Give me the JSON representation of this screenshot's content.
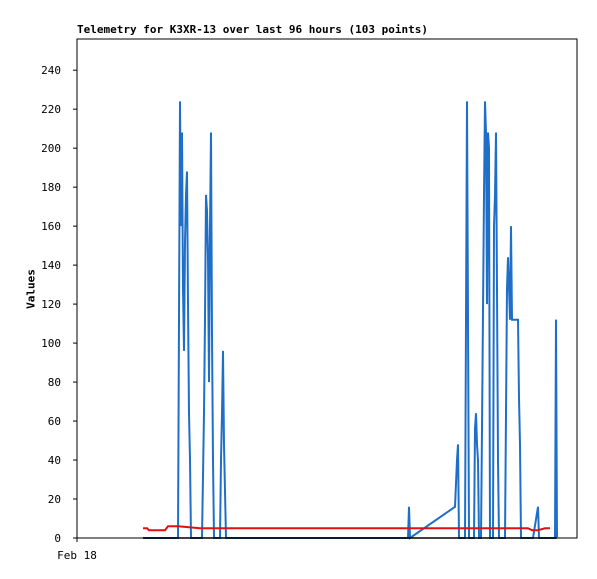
{
  "chart_data": {
    "type": "line",
    "title": "Telemetry for K3XR-13 over last 96 hours (103 points)",
    "xlabel": "",
    "ylabel": "Values",
    "x_tick_labels": [
      "Feb 18"
    ],
    "ylim": [
      0,
      256
    ],
    "y_ticks": [
      0,
      20,
      40,
      60,
      80,
      100,
      120,
      140,
      160,
      180,
      200,
      220,
      240
    ],
    "grid": false,
    "colors": {
      "series_blue": "#1f6fc8",
      "series_red": "#e01010",
      "series_black": "#000000"
    },
    "series": [
      {
        "color": "#1f6fc8",
        "points": [
          [
            143,
            0
          ],
          [
            178,
            0
          ],
          [
            179,
            112
          ],
          [
            180,
            224
          ],
          [
            181,
            160
          ],
          [
            182,
            208
          ],
          [
            183,
            128
          ],
          [
            184,
            96
          ],
          [
            185,
            152
          ],
          [
            186,
            176
          ],
          [
            187,
            188
          ],
          [
            188,
            120
          ],
          [
            189,
            64
          ],
          [
            190,
            40
          ],
          [
            191,
            0
          ],
          [
            202,
            0
          ],
          [
            204,
            64
          ],
          [
            205,
            112
          ],
          [
            206,
            176
          ],
          [
            207,
            168
          ],
          [
            208,
            144
          ],
          [
            209,
            80
          ],
          [
            210,
            160
          ],
          [
            211,
            208
          ],
          [
            212,
            104
          ],
          [
            213,
            40
          ],
          [
            214,
            0
          ],
          [
            220,
            0
          ],
          [
            221,
            40
          ],
          [
            222,
            64
          ],
          [
            223,
            96
          ],
          [
            224,
            48
          ],
          [
            225,
            24
          ],
          [
            226,
            0
          ],
          [
            408,
            0
          ],
          [
            409,
            16
          ],
          [
            410,
            0
          ],
          [
            455,
            16
          ],
          [
            457,
            40
          ],
          [
            458,
            48
          ],
          [
            459,
            0
          ],
          [
            465,
            0
          ],
          [
            466,
            112
          ],
          [
            467,
            224
          ],
          [
            468,
            112
          ],
          [
            469,
            0
          ],
          [
            474,
            0
          ],
          [
            475,
            56
          ],
          [
            476,
            64
          ],
          [
            477,
            48
          ],
          [
            478,
            40
          ],
          [
            479,
            0
          ],
          [
            481,
            0
          ],
          [
            482,
            56
          ],
          [
            484,
            176
          ],
          [
            485,
            224
          ],
          [
            486,
            208
          ],
          [
            487,
            120
          ],
          [
            488,
            208
          ],
          [
            489,
            200
          ],
          [
            490,
            0
          ],
          [
            493,
            0
          ],
          [
            494,
            160
          ],
          [
            495,
            176
          ],
          [
            496,
            208
          ],
          [
            497,
            128
          ],
          [
            498,
            40
          ],
          [
            499,
            0
          ],
          [
            505,
            0
          ],
          [
            507,
            128
          ],
          [
            508,
            144
          ],
          [
            509,
            128
          ],
          [
            510,
            112
          ],
          [
            511,
            160
          ],
          [
            512,
            112
          ],
          [
            518,
            112
          ],
          [
            519,
            72
          ],
          [
            520,
            48
          ],
          [
            521,
            0
          ],
          [
            533,
            0
          ],
          [
            538,
            16
          ],
          [
            539,
            0
          ],
          [
            555,
            0
          ],
          [
            556,
            112
          ],
          [
            557,
            0
          ]
        ]
      },
      {
        "color": "#e01010",
        "points": [
          [
            143,
            5
          ],
          [
            147,
            5
          ],
          [
            149,
            4
          ],
          [
            165,
            4
          ],
          [
            168,
            6
          ],
          [
            178,
            6
          ],
          [
            200,
            5
          ],
          [
            410,
            5
          ],
          [
            528,
            5
          ],
          [
            532,
            4
          ],
          [
            538,
            4
          ],
          [
            545,
            5
          ],
          [
            550,
            5
          ]
        ]
      },
      {
        "color": "#000000",
        "points": [
          [
            143,
            0
          ],
          [
            557,
            0
          ]
        ]
      }
    ]
  }
}
